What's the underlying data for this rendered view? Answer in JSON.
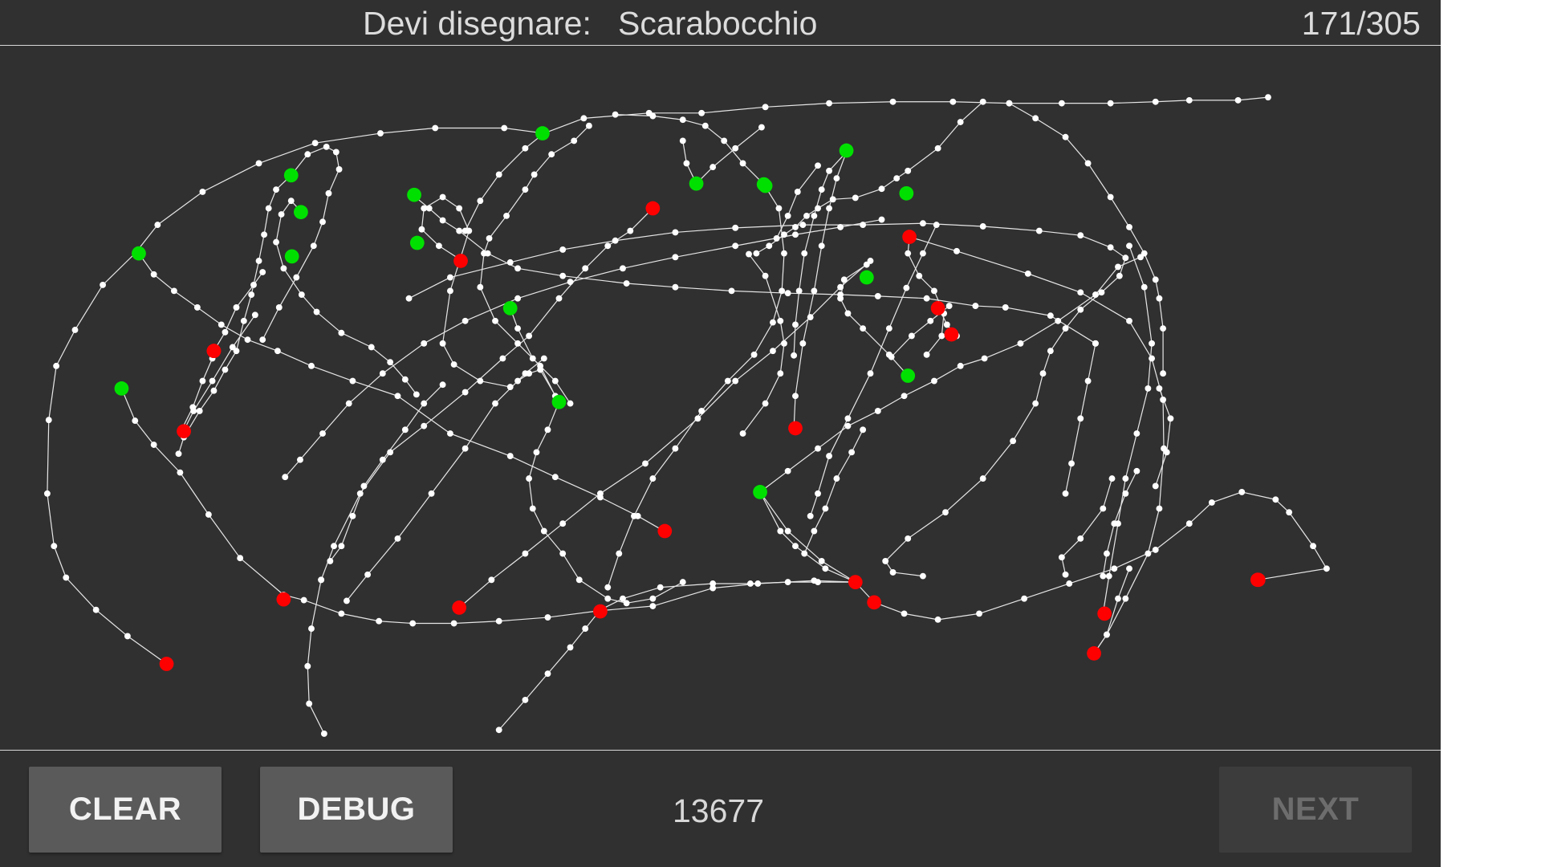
{
  "header": {
    "prompt_label": "Devi disegnare:",
    "prompt_word": "Scarabocchio",
    "progress": "171/305"
  },
  "footer": {
    "clear_label": "CLEAR",
    "debug_label": "DEBUG",
    "score": "13677",
    "next_label": "NEXT",
    "next_enabled": false
  },
  "colors": {
    "background": "#303030",
    "stroke": "#e6e6e6",
    "point": "#ffffff",
    "stroke_start": "#00e000",
    "stroke_end": "#ff0000"
  }
}
